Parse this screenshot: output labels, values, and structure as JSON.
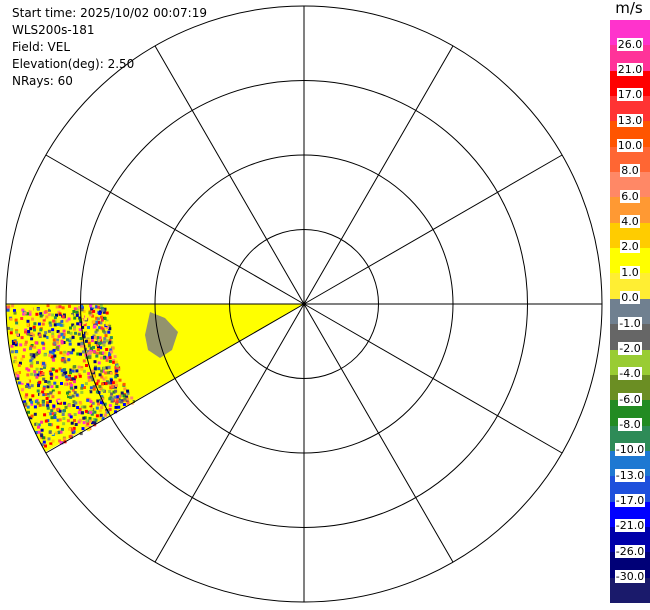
{
  "header": {
    "start_time": "Start time: 2025/10/02 00:07:19",
    "instrument": "WLS200s-181",
    "field": "Field: VEL",
    "elevation": "Elevation(deg): 2.50",
    "nrays": "NRays: 60"
  },
  "colorbar": {
    "unit": "m/s",
    "labels": [
      "26.0",
      "21.0",
      "17.0",
      "13.0",
      "10.0",
      "8.0",
      "6.0",
      "4.0",
      "2.0",
      "1.0",
      "0.0",
      "-1.0",
      "-2.0",
      "-4.0",
      "-6.0",
      "-8.0",
      "-10.0",
      "-13.0",
      "-17.0",
      "-21.0",
      "-26.0",
      "-30.0"
    ],
    "colors": [
      "#ff33cc",
      "#ff3399",
      "#ff0000",
      "#ff3333",
      "#ff5500",
      "#ff6633",
      "#ff8866",
      "#ff9933",
      "#ffcc00",
      "#ffff00",
      "#ffee33",
      "#708090",
      "#666666",
      "#99cc33",
      "#6b8e23",
      "#228b22",
      "#2e8b57",
      "#1e78d2",
      "#1e50dc",
      "#0000ff",
      "#0000aa",
      "#000077",
      "#1a1a6b"
    ]
  },
  "colors": {
    "sector_fill": "#ffff00",
    "grid": "#000000",
    "missing": "#808080"
  }
}
